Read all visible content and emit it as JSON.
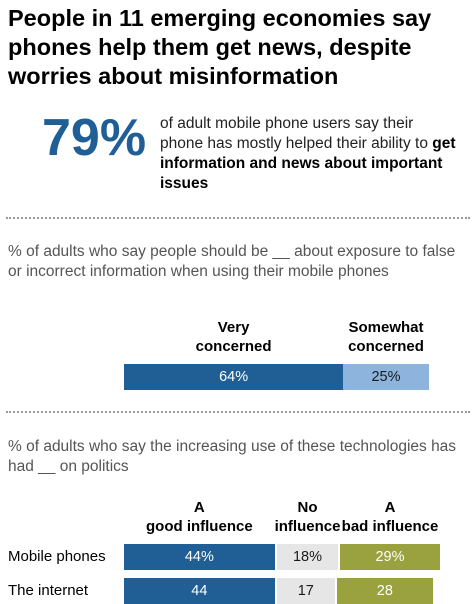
{
  "title": "People in 11 emerging economies say phones help them get news, despite worries about misinformation",
  "highlight": {
    "value": "79%",
    "text_plain": "of adult mobile phone users say their phone has mostly helped their ability to ",
    "text_bold": "get information and news about important issues"
  },
  "colors": {
    "dark_blue": "#1f5f96",
    "light_blue": "#8cb4dd",
    "gray": "#e6e6e6",
    "olive": "#9aa240"
  },
  "chart_data": [
    {
      "type": "bar",
      "subtitle": "% of adults who say people should be __ about exposure to false or incorrect information when using their mobile phones",
      "categories": [
        ""
      ],
      "series": [
        {
          "name": "Very concerned",
          "values": [
            64
          ],
          "labels": [
            "64%"
          ]
        },
        {
          "name": "Somewhat concerned",
          "values": [
            25
          ],
          "labels": [
            "25%"
          ]
        }
      ]
    },
    {
      "type": "bar",
      "subtitle": "% of adults who say the increasing use of these technologies has had __ on politics",
      "categories": [
        "Mobile phones",
        "The internet"
      ],
      "series": [
        {
          "name": "A good influence",
          "values": [
            44,
            44
          ],
          "labels": [
            "44%",
            "44"
          ]
        },
        {
          "name": "No influence",
          "values": [
            18,
            17
          ],
          "labels": [
            "18%",
            "17"
          ]
        },
        {
          "name": "A bad influence",
          "values": [
            29,
            28
          ],
          "labels": [
            "29%",
            "28"
          ]
        }
      ]
    }
  ]
}
